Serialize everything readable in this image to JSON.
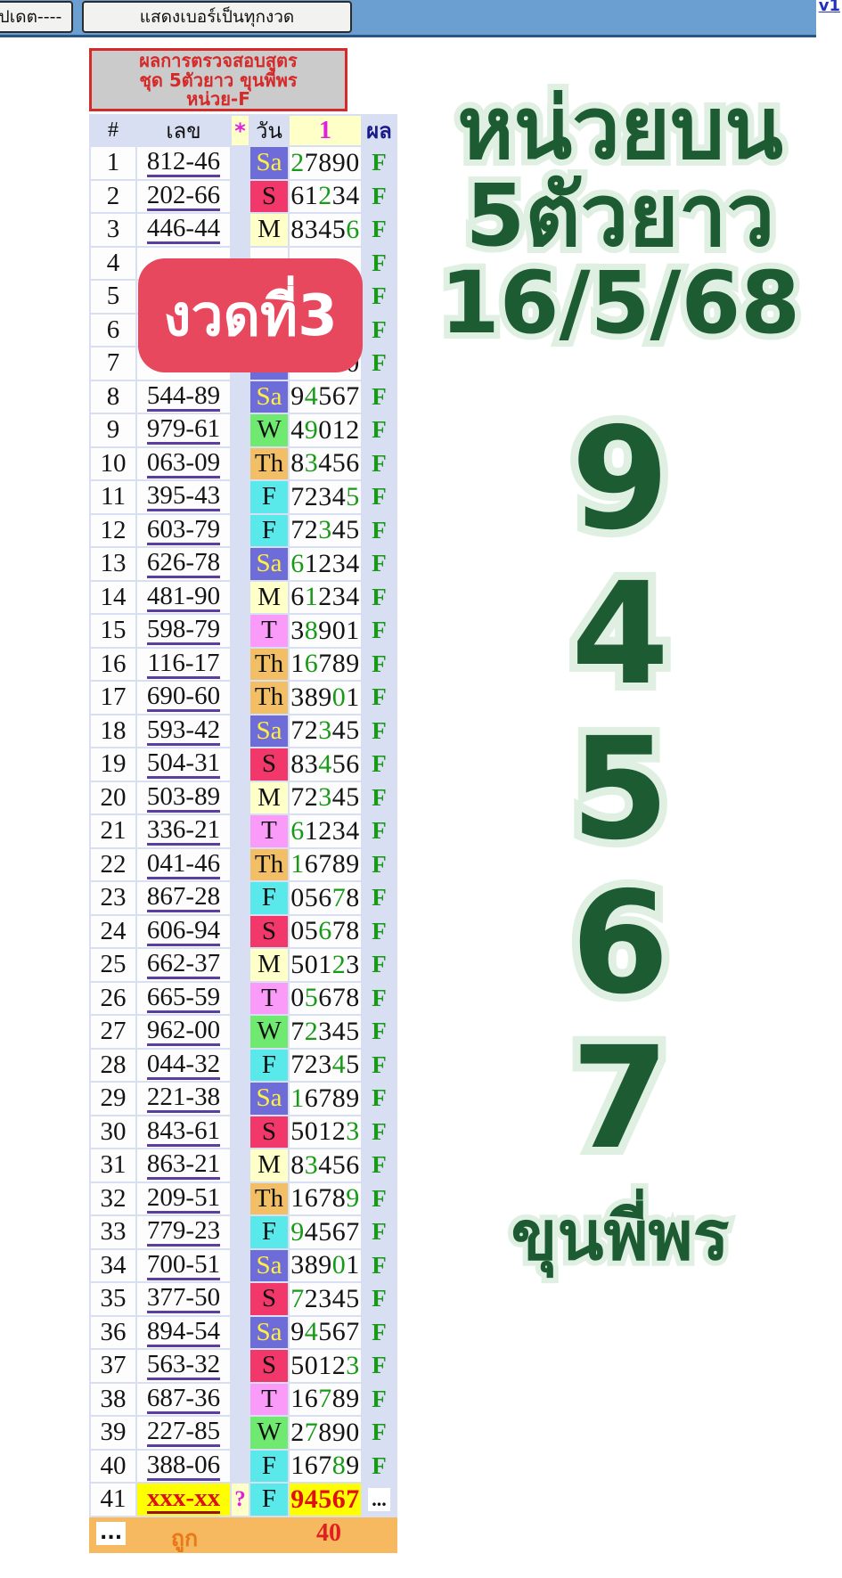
{
  "toolbar": {
    "update_button": "ปเดต----",
    "show_numbers_button": "แสดงเบอร์เป็นทุกงวด",
    "version_link": "v1"
  },
  "header_box": {
    "lines": [
      "ผลการตรวจสอบสูตร",
      "ชุด 5ตัวยาว ขุนพี่พร",
      "หน่วย-F"
    ]
  },
  "badge": {
    "text": "งวดที่3"
  },
  "table": {
    "columns": [
      "#",
      "เลข",
      "*",
      "วัน",
      "1",
      "ผล"
    ],
    "rows": [
      {
        "n": "1",
        "num": "812-46",
        "day": "Sa",
        "digits": "27890",
        "g": 0,
        "res": "F",
        "star": "",
        "special": false
      },
      {
        "n": "2",
        "num": "202-66",
        "day": "S",
        "digits": "61234",
        "g": 2,
        "res": "F",
        "star": "",
        "special": false
      },
      {
        "n": "3",
        "num": "446-44",
        "day": "M",
        "digits": "83456",
        "g": 4,
        "res": "F",
        "star": "",
        "special": false
      },
      {
        "n": "4",
        "num": "",
        "day": "",
        "digits": "",
        "g": -1,
        "res": "F",
        "star": "",
        "special": false
      },
      {
        "n": "5",
        "num": "",
        "day": "",
        "digits": "",
        "g": -1,
        "res": "F",
        "star": "",
        "special": false
      },
      {
        "n": "6",
        "num": "",
        "day": "",
        "digits": "",
        "g": -1,
        "res": "F",
        "star": "",
        "special": false
      },
      {
        "n": "7",
        "num": "",
        "day": "Sa",
        "digits": "27890",
        "g": 0,
        "res": "F",
        "star": "",
        "special": false
      },
      {
        "n": "8",
        "num": "544-89",
        "day": "Sa",
        "digits": "94567",
        "g": 1,
        "res": "F",
        "star": "",
        "special": false
      },
      {
        "n": "9",
        "num": "979-61",
        "day": "W",
        "digits": "49012",
        "g": 1,
        "res": "F",
        "star": "",
        "special": false
      },
      {
        "n": "10",
        "num": "063-09",
        "day": "Th",
        "digits": "83456",
        "g": 1,
        "res": "F",
        "star": "",
        "special": false
      },
      {
        "n": "11",
        "num": "395-43",
        "day": "F",
        "digits": "72345",
        "g": 4,
        "res": "F",
        "star": "",
        "special": false
      },
      {
        "n": "12",
        "num": "603-79",
        "day": "F",
        "digits": "72345",
        "g": 2,
        "res": "F",
        "star": "",
        "special": false
      },
      {
        "n": "13",
        "num": "626-78",
        "day": "Sa",
        "digits": "61234",
        "g": 0,
        "res": "F",
        "star": "",
        "special": false
      },
      {
        "n": "14",
        "num": "481-90",
        "day": "M",
        "digits": "61234",
        "g": 1,
        "res": "F",
        "star": "",
        "special": false
      },
      {
        "n": "15",
        "num": "598-79",
        "day": "T",
        "digits": "38901",
        "g": 1,
        "res": "F",
        "star": "",
        "special": false
      },
      {
        "n": "16",
        "num": "116-17",
        "day": "Th",
        "digits": "16789",
        "g": 1,
        "res": "F",
        "star": "",
        "special": false
      },
      {
        "n": "17",
        "num": "690-60",
        "day": "Th",
        "digits": "38901",
        "g": 3,
        "res": "F",
        "star": "",
        "special": false
      },
      {
        "n": "18",
        "num": "593-42",
        "day": "Sa",
        "digits": "72345",
        "g": 2,
        "res": "F",
        "star": "",
        "special": false
      },
      {
        "n": "19",
        "num": "504-31",
        "day": "S",
        "digits": "83456",
        "g": 2,
        "res": "F",
        "star": "",
        "special": false
      },
      {
        "n": "20",
        "num": "503-89",
        "day": "M",
        "digits": "72345",
        "g": 2,
        "res": "F",
        "star": "",
        "special": false
      },
      {
        "n": "21",
        "num": "336-21",
        "day": "T",
        "digits": "61234",
        "g": 0,
        "res": "F",
        "star": "",
        "special": false
      },
      {
        "n": "22",
        "num": "041-46",
        "day": "Th",
        "digits": "16789",
        "g": 0,
        "res": "F",
        "star": "",
        "special": false
      },
      {
        "n": "23",
        "num": "867-28",
        "day": "F",
        "digits": "05678",
        "g": 3,
        "res": "F",
        "star": "",
        "special": false
      },
      {
        "n": "24",
        "num": "606-94",
        "day": "S",
        "digits": "05678",
        "g": 2,
        "res": "F",
        "star": "",
        "special": false
      },
      {
        "n": "25",
        "num": "662-37",
        "day": "M",
        "digits": "50123",
        "g": 3,
        "res": "F",
        "star": "",
        "special": false
      },
      {
        "n": "26",
        "num": "665-59",
        "day": "T",
        "digits": "05678",
        "g": 1,
        "res": "F",
        "star": "",
        "special": false
      },
      {
        "n": "27",
        "num": "962-00",
        "day": "W",
        "digits": "72345",
        "g": 1,
        "res": "F",
        "star": "",
        "special": false
      },
      {
        "n": "28",
        "num": "044-32",
        "day": "F",
        "digits": "72345",
        "g": 3,
        "res": "F",
        "star": "",
        "special": false
      },
      {
        "n": "29",
        "num": "221-38",
        "day": "Sa",
        "digits": "16789",
        "g": 0,
        "res": "F",
        "star": "",
        "special": false
      },
      {
        "n": "30",
        "num": "843-61",
        "day": "S",
        "digits": "50123",
        "g": 4,
        "res": "F",
        "star": "",
        "special": false
      },
      {
        "n": "31",
        "num": "863-21",
        "day": "M",
        "digits": "83456",
        "g": 1,
        "res": "F",
        "star": "",
        "special": false
      },
      {
        "n": "32",
        "num": "209-51",
        "day": "Th",
        "digits": "16789",
        "g": 4,
        "res": "F",
        "star": "",
        "special": false
      },
      {
        "n": "33",
        "num": "779-23",
        "day": "F",
        "digits": "94567",
        "g": 0,
        "res": "F",
        "star": "",
        "special": false
      },
      {
        "n": "34",
        "num": "700-51",
        "day": "Sa",
        "digits": "38901",
        "g": 3,
        "res": "F",
        "star": "",
        "special": false
      },
      {
        "n": "35",
        "num": "377-50",
        "day": "S",
        "digits": "72345",
        "g": 0,
        "res": "F",
        "star": "",
        "special": false
      },
      {
        "n": "36",
        "num": "894-54",
        "day": "Sa",
        "digits": "94567",
        "g": 1,
        "res": "F",
        "star": "",
        "special": false
      },
      {
        "n": "37",
        "num": "563-32",
        "day": "S",
        "digits": "50123",
        "g": 4,
        "res": "F",
        "star": "",
        "special": false
      },
      {
        "n": "38",
        "num": "687-36",
        "day": "T",
        "digits": "16789",
        "g": 2,
        "res": "F",
        "star": "",
        "special": false
      },
      {
        "n": "39",
        "num": "227-85",
        "day": "W",
        "digits": "27890",
        "g": 1,
        "res": "F",
        "star": "",
        "special": false
      },
      {
        "n": "40",
        "num": "388-06",
        "day": "F",
        "digits": "16789",
        "g": 3,
        "res": "F",
        "star": "",
        "special": false
      },
      {
        "n": "41",
        "num": "xxx-xx",
        "day": "F",
        "digits": "94567",
        "g": -1,
        "res": "...",
        "star": "?",
        "special": true
      }
    ],
    "footer": {
      "dots": "...",
      "label": "ถูก",
      "count": "40"
    }
  },
  "art": {
    "line1": "หน่วยบน",
    "line2": "5ตัวยาว",
    "line3": "16/5/68",
    "digits": [
      "9",
      "4",
      "5",
      "6",
      "7"
    ],
    "signature": "ขุนพี่พร"
  },
  "colors": {
    "topbar": "#6b9fd2",
    "badge_red": "#e8485e",
    "title_red": "#d42a2a",
    "title_bg": "#cbcbcb",
    "table_bg": "#d9dff2",
    "cell_white": "#fdfdfe",
    "green": "#189a18",
    "magenta": "#e020e0",
    "navy": "#1a1a8c",
    "underline_purple": "#5a3fa0",
    "yellow_highlight": "#ffff00",
    "footer_orange": "#f6b960",
    "footer_label": "#e87818",
    "footer_count": "#e02020",
    "art_green": "#1d5c33",
    "art_halo": "#dff0e2",
    "days": {
      "Sa": {
        "bg": "#6e6cd8",
        "fg": "#ffee44"
      },
      "S": {
        "bg": "#f2376b",
        "fg": "#111111"
      },
      "M": {
        "bg": "#ffffc8",
        "fg": "#111111"
      },
      "T": {
        "bg": "#fa9bfa",
        "fg": "#111111"
      },
      "W": {
        "bg": "#6fe96f",
        "fg": "#111111"
      },
      "Th": {
        "bg": "#f2bf66",
        "fg": "#111111"
      },
      "F": {
        "bg": "#5ae9ea",
        "fg": "#111111"
      }
    }
  }
}
